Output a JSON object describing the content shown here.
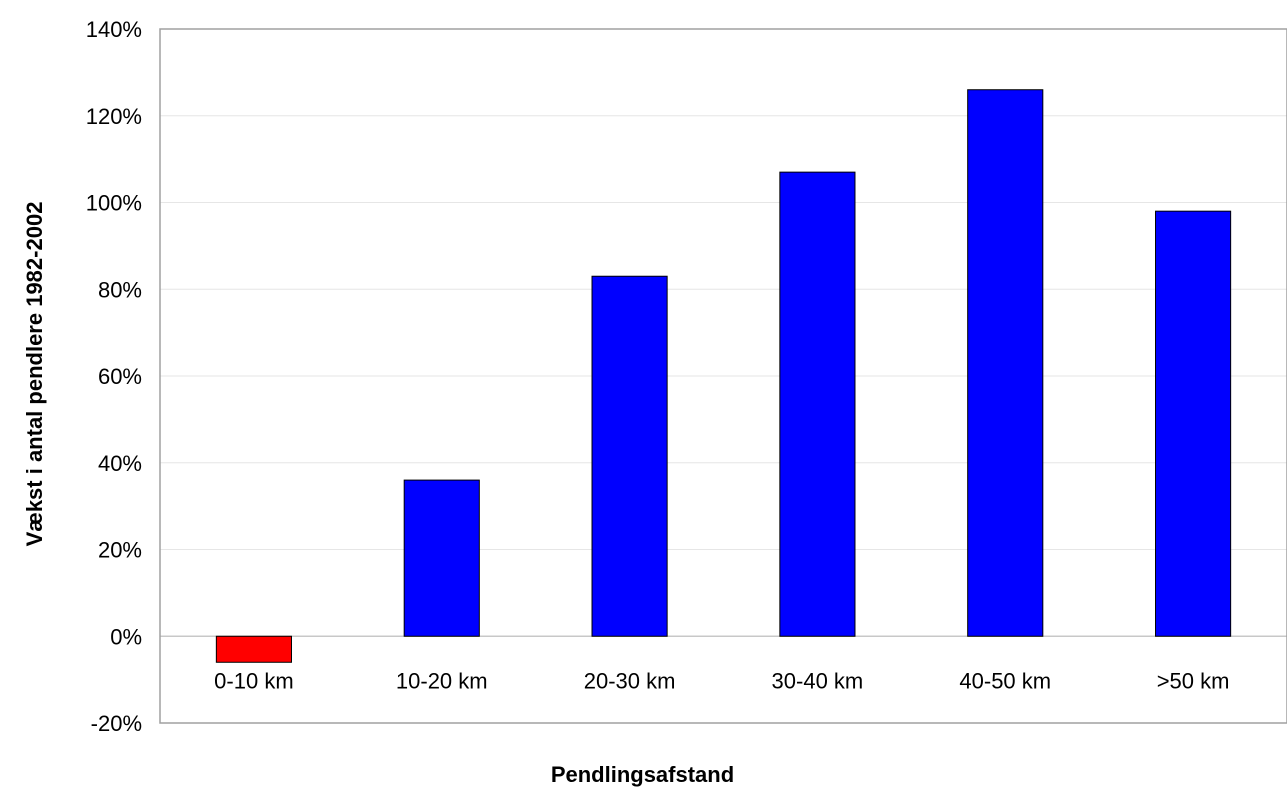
{
  "chart_data": {
    "type": "bar",
    "title": "",
    "xlabel": "Pendlingsafstand",
    "ylabel": "Vækst i antal pendlere 1982-2002",
    "categories": [
      "0-10 km",
      "10-20 km",
      "20-30 km",
      "30-40 km",
      "40-50 km",
      ">50 km"
    ],
    "values": [
      -6,
      36,
      83,
      107,
      126,
      98
    ],
    "value_unit": "%",
    "ylim": [
      -20,
      140
    ],
    "ytick_values": [
      -20,
      0,
      20,
      40,
      60,
      80,
      100,
      120,
      140
    ],
    "ytick_labels": [
      "-20%",
      "0%",
      "20%",
      "40%",
      "60%",
      "80%",
      "100%",
      "120%",
      "140%"
    ],
    "grid": true,
    "legend": "none",
    "colors": {
      "positive_bar": "#0000ff",
      "negative_bar": "#ff0000",
      "bar_outline": "#000000",
      "gridline": "#e6e6e6",
      "plot_border": "#a0a0a0",
      "zero_line": "#c8c8c8"
    }
  }
}
